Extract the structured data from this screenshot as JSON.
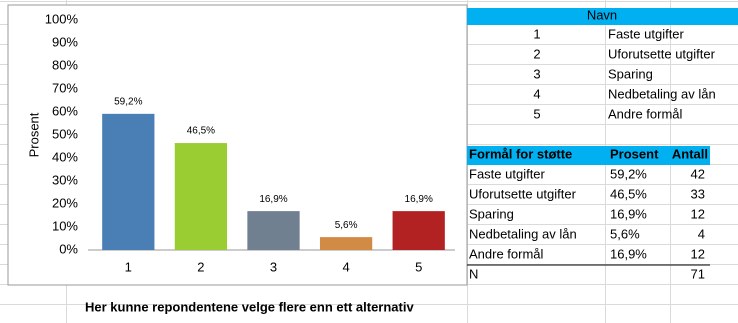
{
  "chart_data": {
    "type": "bar",
    "y_label": "Prosent",
    "categories": [
      "1",
      "2",
      "3",
      "4",
      "5"
    ],
    "values": [
      59.2,
      46.5,
      16.9,
      5.6,
      16.9
    ],
    "value_labels": [
      "59,2%",
      "46,5%",
      "16,9%",
      "5,6%",
      "16,9%"
    ],
    "colors": [
      "#4a7fb5",
      "#9acd32",
      "#708090",
      "#d28b45",
      "#b22222"
    ],
    "ylim": [
      0,
      100
    ],
    "yticks": [
      {
        "value": 0,
        "label": "0%"
      },
      {
        "value": 10,
        "label": "10%"
      },
      {
        "value": 20,
        "label": "20%"
      },
      {
        "value": 30,
        "label": "30%"
      },
      {
        "value": 40,
        "label": "40%"
      },
      {
        "value": 50,
        "label": "50%"
      },
      {
        "value": 60,
        "label": "60%"
      },
      {
        "value": 70,
        "label": "70%"
      },
      {
        "value": 80,
        "label": "80%"
      },
      {
        "value": 90,
        "label": "90%"
      },
      {
        "value": 100,
        "label": "100%"
      }
    ]
  },
  "names_table": {
    "header": "Navn",
    "rows": [
      [
        "1",
        "Faste utgifter"
      ],
      [
        "2",
        "Uforutsette utgifter"
      ],
      [
        "3",
        "Sparing"
      ],
      [
        "4",
        "Nedbetaling av lån"
      ],
      [
        "5",
        "Andre formål"
      ]
    ]
  },
  "stats_table": {
    "header": [
      "Formål for støtte",
      "Prosent",
      "Antall"
    ],
    "rows": [
      [
        "Faste utgifter",
        "59,2%",
        "42"
      ],
      [
        "Uforutsette utgifter",
        "46,5%",
        "33"
      ],
      [
        "Sparing",
        "16,9%",
        "12"
      ],
      [
        "Nedbetaling av lån",
        "5,6%",
        "4"
      ],
      [
        "Andre formål",
        "16,9%",
        "12"
      ]
    ],
    "total": {
      "label": "N",
      "value": "71"
    }
  },
  "note": "Her kunne repondentene velge flere enn ett alternativ"
}
